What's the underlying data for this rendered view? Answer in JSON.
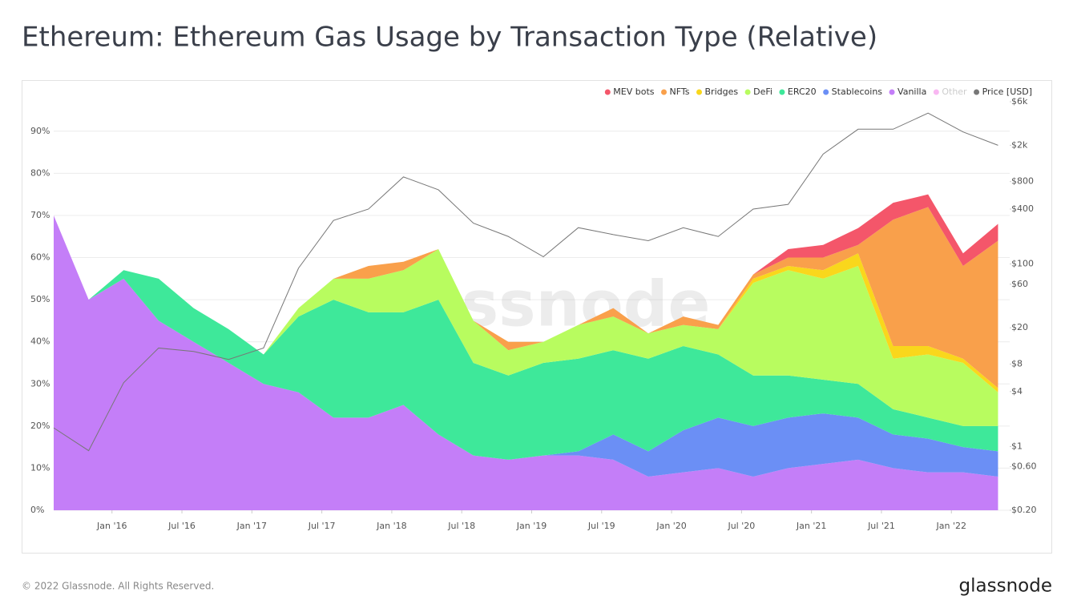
{
  "chart_data": {
    "type": "area",
    "stacked": true,
    "title": "Ethereum: Ethereum Gas Usage by Transaction Type (Relative)",
    "watermark": "glassnode",
    "footer": "© 2022 Glassnode. All Rights Reserved.",
    "logo": "glassnode",
    "legend": "top-right",
    "grid": true,
    "x": [
      "2015-08",
      "2015-11",
      "2016-02",
      "2016-05",
      "2016-08",
      "2016-11",
      "2017-02",
      "2017-05",
      "2017-08",
      "2017-11",
      "2018-02",
      "2018-05",
      "2018-08",
      "2018-11",
      "2019-02",
      "2019-05",
      "2019-08",
      "2019-11",
      "2020-02",
      "2020-05",
      "2020-08",
      "2020-11",
      "2021-02",
      "2021-05",
      "2021-08",
      "2021-11",
      "2022-02",
      "2022-05"
    ],
    "xlim": [
      "2015-08",
      "2022-06"
    ],
    "xticks": [
      {
        "value": "2016-01",
        "label": "Jan '16"
      },
      {
        "value": "2016-07",
        "label": "Jul '16"
      },
      {
        "value": "2017-01",
        "label": "Jan '17"
      },
      {
        "value": "2017-07",
        "label": "Jul '17"
      },
      {
        "value": "2018-01",
        "label": "Jan '18"
      },
      {
        "value": "2018-07",
        "label": "Jul '18"
      },
      {
        "value": "2019-01",
        "label": "Jan '19"
      },
      {
        "value": "2019-07",
        "label": "Jul '19"
      },
      {
        "value": "2020-01",
        "label": "Jan '20"
      },
      {
        "value": "2020-07",
        "label": "Jul '20"
      },
      {
        "value": "2021-01",
        "label": "Jan '21"
      },
      {
        "value": "2021-07",
        "label": "Jul '21"
      },
      {
        "value": "2022-01",
        "label": "Jan '22"
      }
    ],
    "ylim": [
      0,
      97
    ],
    "yticks": [
      {
        "value": 0,
        "label": "0%"
      },
      {
        "value": 10,
        "label": "10%"
      },
      {
        "value": 20,
        "label": "20%"
      },
      {
        "value": 30,
        "label": "30%"
      },
      {
        "value": 40,
        "label": "40%"
      },
      {
        "value": 50,
        "label": "50%"
      },
      {
        "value": 60,
        "label": "60%"
      },
      {
        "value": 70,
        "label": "70%"
      },
      {
        "value": 80,
        "label": "80%"
      },
      {
        "value": 90,
        "label": "90%"
      }
    ],
    "y2_scale": "log",
    "y2lim": [
      0.2,
      6000
    ],
    "y2ticks": [
      {
        "value": 0.2,
        "label": "$0.20"
      },
      {
        "value": 0.6,
        "label": "$0.60"
      },
      {
        "value": 1,
        "label": "$1"
      },
      {
        "value": 4,
        "label": "$4"
      },
      {
        "value": 8,
        "label": "$8"
      },
      {
        "value": 20,
        "label": "$20"
      },
      {
        "value": 60,
        "label": "$60"
      },
      {
        "value": 100,
        "label": "$100"
      },
      {
        "value": 400,
        "label": "$400"
      },
      {
        "value": 800,
        "label": "$800"
      },
      {
        "value": 2000,
        "label": "$2k"
      },
      {
        "value": 6000,
        "label": "$6k"
      }
    ],
    "series": [
      {
        "name": "MEV bots",
        "color": "#f4566a",
        "values": [
          0,
          0,
          0,
          0,
          0,
          0,
          0,
          0,
          0,
          0,
          0,
          0,
          0,
          0,
          0,
          0,
          0,
          0,
          0,
          0,
          0,
          2,
          3,
          4,
          4,
          3,
          3,
          4
        ]
      },
      {
        "name": "NFTs",
        "color": "#f9a04b",
        "values": [
          0,
          0,
          0,
          0,
          0,
          0,
          0,
          0,
          0,
          3,
          2,
          0,
          0,
          2,
          0,
          0,
          2,
          0,
          2,
          1,
          1,
          2,
          3,
          2,
          30,
          33,
          22,
          35
        ]
      },
      {
        "name": "Bridges",
        "color": "#f9d71c",
        "values": [
          0,
          0,
          0,
          0,
          0,
          0,
          0,
          0,
          0,
          0,
          0,
          0,
          0,
          0,
          0,
          0,
          0,
          0,
          0,
          0,
          1,
          1,
          2,
          3,
          3,
          2,
          1,
          1
        ]
      },
      {
        "name": "DeFi",
        "color": "#b8fc5f",
        "values": [
          0,
          0,
          0,
          0,
          0,
          0,
          0,
          2,
          5,
          8,
          10,
          12,
          10,
          6,
          5,
          8,
          8,
          6,
          5,
          6,
          22,
          25,
          24,
          28,
          12,
          15,
          15,
          8
        ]
      },
      {
        "name": "ERC20",
        "color": "#3ee89a",
        "values": [
          0,
          0,
          2,
          10,
          8,
          8,
          7,
          18,
          28,
          25,
          22,
          32,
          22,
          20,
          22,
          22,
          20,
          22,
          20,
          15,
          12,
          10,
          8,
          8,
          6,
          5,
          5,
          6
        ]
      },
      {
        "name": "Stablecoins",
        "color": "#6b8ff5",
        "values": [
          0,
          0,
          0,
          0,
          0,
          0,
          0,
          0,
          0,
          0,
          0,
          0,
          0,
          0,
          0,
          1,
          6,
          6,
          10,
          12,
          12,
          12,
          12,
          10,
          8,
          8,
          6,
          6
        ]
      },
      {
        "name": "Vanilla",
        "color": "#c47ef8",
        "values": [
          70,
          50,
          55,
          45,
          40,
          35,
          30,
          28,
          22,
          22,
          25,
          18,
          13,
          12,
          13,
          13,
          12,
          8,
          9,
          10,
          8,
          10,
          11,
          12,
          10,
          9,
          9,
          8
        ]
      },
      {
        "name": "Other",
        "color": "#f472e6",
        "visible": false,
        "values": [
          null,
          null,
          null,
          null,
          null,
          null,
          null,
          null,
          null,
          null,
          null,
          null,
          null,
          null,
          null,
          null,
          null,
          null,
          null,
          null,
          null,
          null,
          null,
          null,
          null,
          null,
          null,
          null
        ]
      },
      {
        "name": "Price [USD]",
        "color": "#777777",
        "axis": "y2",
        "type": "line",
        "values": [
          1.6,
          0.9,
          5,
          12,
          11,
          9,
          12,
          90,
          300,
          400,
          900,
          650,
          280,
          200,
          120,
          250,
          210,
          180,
          250,
          200,
          400,
          450,
          1600,
          3000,
          3000,
          4500,
          2800,
          2000
        ]
      }
    ]
  }
}
